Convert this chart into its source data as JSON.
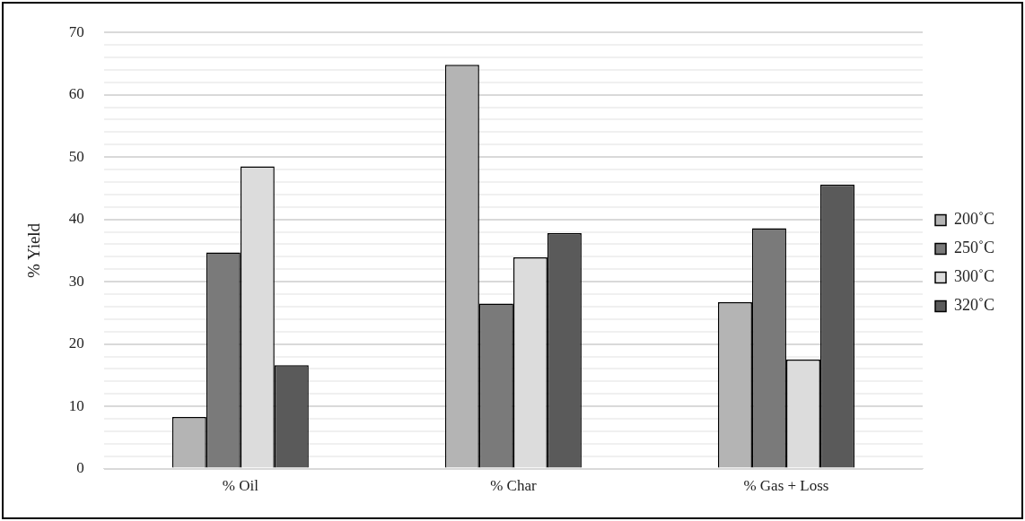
{
  "chart_data": {
    "type": "bar",
    "ylabel": "% Yield",
    "categories": [
      "% Oil",
      "% Char",
      "% Gas + Loss"
    ],
    "series": [
      {
        "name": "200˚C",
        "color": "#b4b4b4",
        "values": [
          8.3,
          64.8,
          26.7
        ]
      },
      {
        "name": "250˚C",
        "color": "#7a7a7a",
        "values": [
          34.7,
          26.5,
          38.6
        ]
      },
      {
        "name": "300˚C",
        "color": "#dcdcdc",
        "values": [
          48.5,
          33.9,
          17.5
        ]
      },
      {
        "name": "320˚C",
        "color": "#5a5a5a",
        "values": [
          16.6,
          37.8,
          45.6
        ]
      }
    ],
    "ylim": [
      0,
      70
    ],
    "yticks": [
      0,
      {
        "value": 2,
        "label": null
      },
      {
        "value": 4,
        "label": null
      },
      {
        "value": 6,
        "label": null
      },
      {
        "value": 8,
        "label": null
      },
      10,
      {
        "value": 12,
        "label": null
      },
      {
        "value": 14,
        "label": null
      },
      {
        "value": 16,
        "label": null
      },
      {
        "value": 18,
        "label": null
      },
      20,
      {
        "value": 22,
        "label": null
      },
      {
        "value": 24,
        "label": null
      },
      {
        "value": 26,
        "label": null
      },
      {
        "value": 28,
        "label": null
      },
      30,
      {
        "value": 32,
        "label": null
      },
      {
        "value": 34,
        "label": null
      },
      {
        "value": 36,
        "label": null
      },
      {
        "value": 38,
        "label": null
      },
      40,
      {
        "value": 42,
        "label": null
      },
      {
        "value": 44,
        "label": null
      },
      {
        "value": 46,
        "label": null
      },
      {
        "value": 48,
        "label": null
      },
      50,
      {
        "value": 52,
        "label": null
      },
      {
        "value": 54,
        "label": null
      },
      {
        "value": 56,
        "label": null
      },
      {
        "value": 58,
        "label": null
      },
      60,
      {
        "value": 62,
        "label": null
      },
      {
        "value": 64,
        "label": null
      },
      {
        "value": 66,
        "label": null
      },
      {
        "value": 68,
        "label": null
      },
      70
    ],
    "grid": "y",
    "legend": "right"
  }
}
